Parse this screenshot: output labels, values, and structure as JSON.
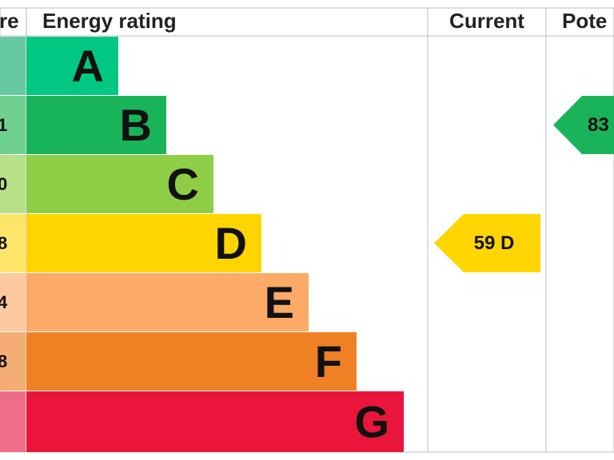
{
  "header": {
    "score": "re",
    "rating": "Energy rating",
    "current": "Current",
    "potential": "Pote"
  },
  "bands": [
    {
      "letter": "A",
      "score": null,
      "color": "#00c781",
      "tint": "#66c9a4"
    },
    {
      "letter": "B",
      "score": "1",
      "color": "#19b459",
      "tint": "#6fcf8f"
    },
    {
      "letter": "C",
      "score": "0",
      "color": "#8dce46",
      "tint": "#b6df8a"
    },
    {
      "letter": "D",
      "score": "8",
      "color": "#ffd500",
      "tint": "#ffe46a"
    },
    {
      "letter": "E",
      "score": "4",
      "color": "#fcaa65",
      "tint": "#fdc9a0"
    },
    {
      "letter": "F",
      "score": "8",
      "color": "#ef8023",
      "tint": "#f4ad72"
    },
    {
      "letter": "G",
      "score": null,
      "color": "#e9153b",
      "tint": "#ef6d86"
    }
  ],
  "current": {
    "text": "59  D",
    "band": 3,
    "color": "#ffd500"
  },
  "potential": {
    "text": "83",
    "band": 1,
    "color": "#19b459"
  }
}
